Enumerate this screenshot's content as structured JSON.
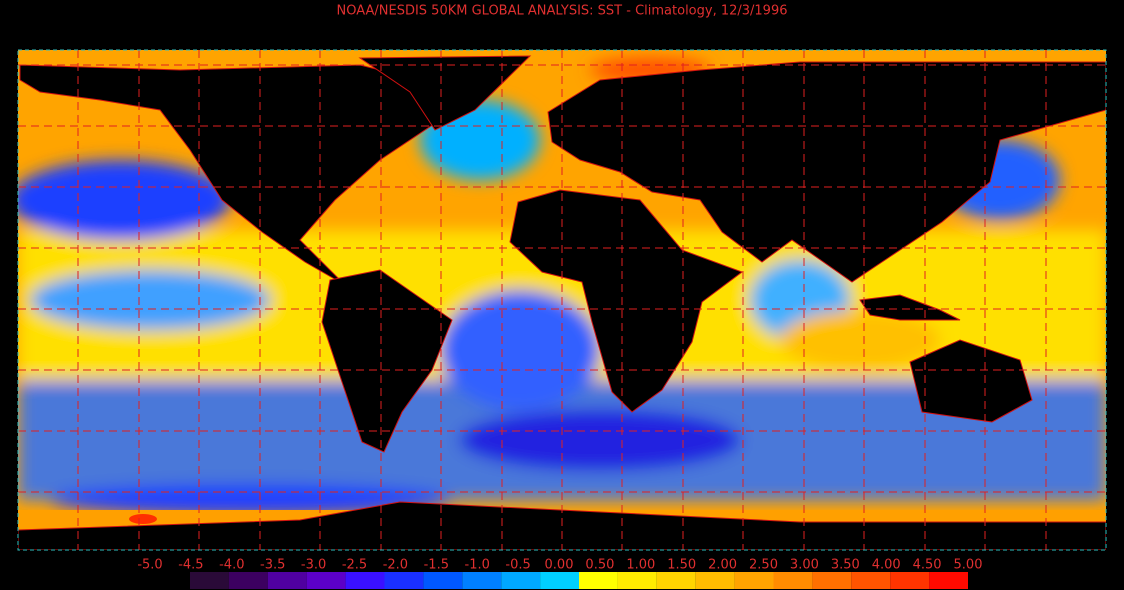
{
  "map": {
    "title": "NOAA/NESDIS 50KM GLOBAL ANALYSIS: SST - Climatology, 12/3/1996",
    "colorbar": {
      "ticks": [
        {
          "value": -5,
          "label": "-5.0"
        },
        {
          "value": -4.5,
          "label": "-4.5"
        },
        {
          "value": -4,
          "label": "-4.0"
        },
        {
          "value": -3.5,
          "label": "-3.5"
        },
        {
          "value": -3,
          "label": "-3.0"
        },
        {
          "value": -2.5,
          "label": "-2.5"
        },
        {
          "value": -2,
          "label": "-2.0"
        },
        {
          "value": -1.5,
          "label": "-1.5"
        },
        {
          "value": -1,
          "label": "-1.0"
        },
        {
          "value": -0.5,
          "label": "-0.5"
        },
        {
          "value": 0,
          "label": "0.00"
        },
        {
          "value": 0.5,
          "label": "0.50"
        },
        {
          "value": 1,
          "label": "1.00"
        },
        {
          "value": 1.5,
          "label": "1.50"
        },
        {
          "value": 2,
          "label": "2.00"
        },
        {
          "value": 2.5,
          "label": "2.50"
        },
        {
          "value": 3,
          "label": "3.00"
        },
        {
          "value": 3.5,
          "label": "3.50"
        },
        {
          "value": 4,
          "label": "4.00"
        },
        {
          "value": 4.5,
          "label": "4.50"
        },
        {
          "value": 5,
          "label": "5.00"
        }
      ],
      "colors": [
        "#2a0a38",
        "#3c0060",
        "#5000a0",
        "#5c00c8",
        "#3a10ff",
        "#1a30ff",
        "#0058ff",
        "#0080ff",
        "#00a8ff",
        "#00d0ff",
        "#ffff00",
        "#ffec00",
        "#ffd400",
        "#ffbc00",
        "#ffa400",
        "#ff8c00",
        "#ff7000",
        "#ff5400",
        "#ff3400",
        "#ff0a00"
      ]
    }
  }
}
